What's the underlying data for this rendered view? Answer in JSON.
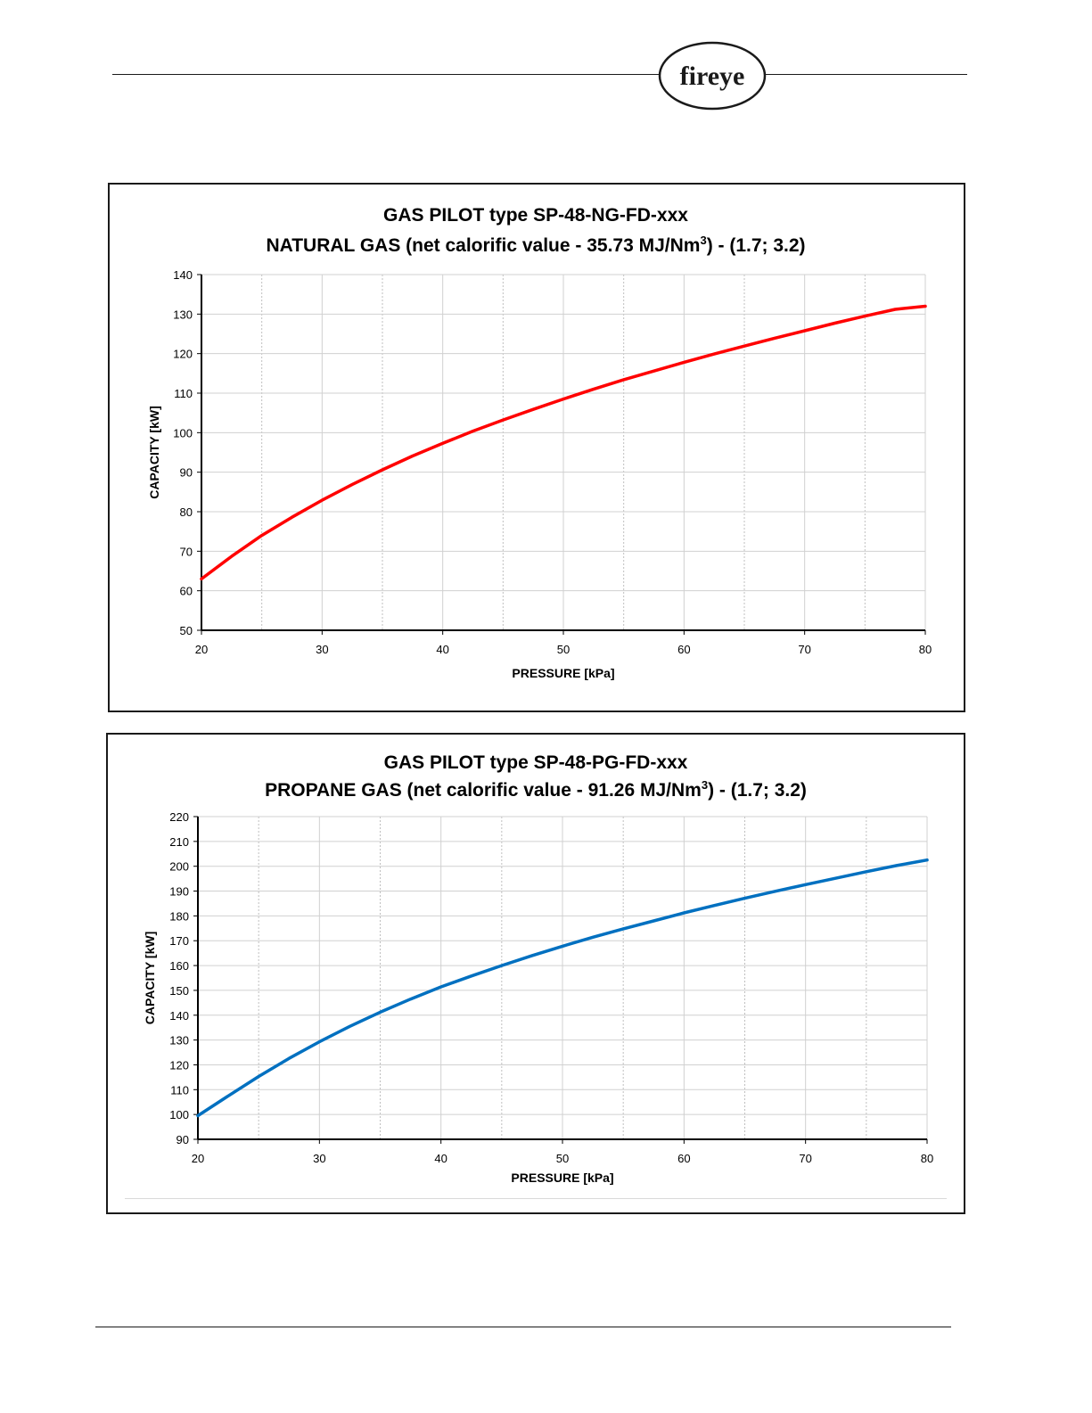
{
  "header": {
    "logo": {
      "text": "fireye",
      "icon": "fireye-oval-logo"
    }
  },
  "charts": [
    {
      "id": "ng",
      "title_line1": "GAS PILOT type SP-48-NG-FD-xxx",
      "title_line2_pre": "NATURAL GAS (net calorific value - 35.73 MJ/Nm",
      "title_line2_sup": "3",
      "title_line2_post": ") - (1.7; 3.2)",
      "line_color": "#ff0000"
    },
    {
      "id": "pg",
      "title_line1": "GAS PILOT type SP-48-PG-FD-xxx",
      "title_line2_pre": "PROPANE GAS (net calorific value - 91.26 MJ/Nm",
      "title_line2_sup": "3",
      "title_line2_post": ") - (1.7; 3.2)",
      "line_color": "#0070c0"
    }
  ],
  "chart_data": [
    {
      "type": "line",
      "title": "GAS PILOT type SP-48-NG-FD-xxx NATURAL GAS (net calorific value - 35.73 MJ/Nm3) - (1.7; 3.2)",
      "xlabel": "PRESSURE [kPa]",
      "ylabel": "CAPACITY [kW]",
      "xlim": [
        20,
        80
      ],
      "ylim": [
        50,
        140
      ],
      "x_ticks": [
        20,
        30,
        40,
        50,
        60,
        70,
        80
      ],
      "y_ticks": [
        50,
        60,
        70,
        80,
        90,
        100,
        110,
        120,
        130,
        140
      ],
      "grid": true,
      "series": [
        {
          "color": "#ff0000",
          "x": [
            20,
            22.5,
            25,
            27.5,
            30,
            32.5,
            35,
            37.5,
            40,
            42.5,
            45,
            47.5,
            50,
            52.5,
            55,
            57.5,
            60,
            62.5,
            65,
            67.5,
            70,
            72.5,
            75,
            77.5,
            80
          ],
          "y": [
            63,
            68.7,
            74,
            78.6,
            82.9,
            86.9,
            90.6,
            94.1,
            97.3,
            100.4,
            103.2,
            105.9,
            108.5,
            111,
            113.4,
            115.6,
            117.8,
            119.9,
            121.9,
            123.9,
            125.8,
            127.7,
            129.5,
            131.2,
            132
          ]
        }
      ]
    },
    {
      "type": "line",
      "title": "GAS PILOT type SP-48-PG-FD-xxx PROPANE GAS (net calorific value - 91.26 MJ/Nm3) - (1.7; 3.2)",
      "xlabel": "PRESSURE [kPa]",
      "ylabel": "CAPACITY [kW]",
      "xlim": [
        20,
        80
      ],
      "ylim": [
        90,
        220
      ],
      "x_ticks": [
        20,
        30,
        40,
        50,
        60,
        70,
        80
      ],
      "y_ticks": [
        90,
        100,
        110,
        120,
        130,
        140,
        150,
        160,
        170,
        180,
        190,
        200,
        210,
        220
      ],
      "grid": true,
      "series": [
        {
          "color": "#0070c0",
          "x": [
            20,
            22.5,
            25,
            27.5,
            30,
            32.5,
            35,
            37.5,
            40,
            42.5,
            45,
            47.5,
            50,
            52.5,
            55,
            57.5,
            60,
            62.5,
            65,
            67.5,
            70,
            72.5,
            75,
            77.5,
            80
          ],
          "y": [
            99.5,
            107.5,
            115.3,
            122.6,
            129.3,
            135.5,
            141.2,
            146.5,
            151.4,
            155.8,
            160,
            164,
            167.8,
            171.4,
            174.8,
            178,
            181.2,
            184.2,
            187.1,
            189.9,
            192.6,
            195.2,
            197.8,
            200.3,
            202.5
          ]
        }
      ]
    }
  ]
}
